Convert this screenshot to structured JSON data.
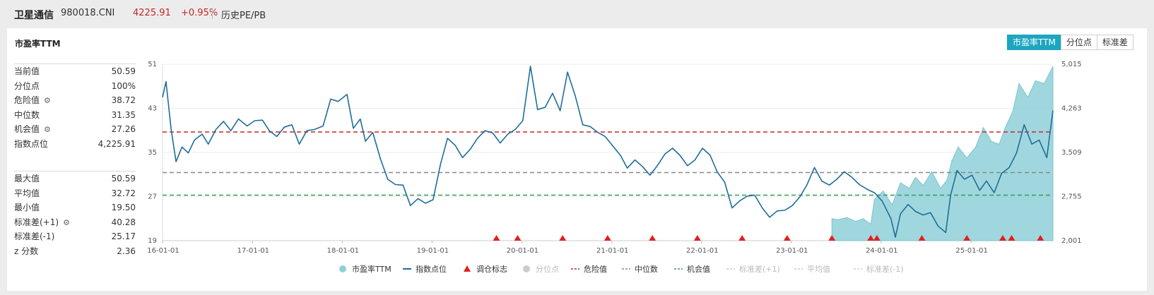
{
  "header": {
    "name": "卫星通信",
    "code": "980018.CNI",
    "price": "4225.91",
    "change": "+0.95%",
    "link": "历史PE/PB"
  },
  "panel": {
    "title": "市盈率TTM",
    "buttons": [
      {
        "label": "市盈率TTM",
        "active": true
      },
      {
        "label": "分位点",
        "active": false
      },
      {
        "label": "标准差",
        "active": false
      }
    ]
  },
  "stats_top": [
    {
      "label": "当前值",
      "value": "50.59",
      "gear": false
    },
    {
      "label": "分位点",
      "value": "100%",
      "gear": false
    },
    {
      "label": "危险值",
      "value": "38.72",
      "gear": true
    },
    {
      "label": "中位数",
      "value": "31.35",
      "gear": false
    },
    {
      "label": "机会值",
      "value": "27.26",
      "gear": true
    },
    {
      "label": "指数点位",
      "value": "4,225.91",
      "gear": false
    }
  ],
  "stats_bottom": [
    {
      "label": "最大值",
      "value": "50.59",
      "gear": false
    },
    {
      "label": "平均值",
      "value": "32.72",
      "gear": false
    },
    {
      "label": "最小值",
      "value": "19.50",
      "gear": false
    },
    {
      "label": "标准差(+1)",
      "value": "40.28",
      "gear": true
    },
    {
      "label": "标准差(-1)",
      "value": "25.17",
      "gear": false
    },
    {
      "label": "z 分数",
      "value": "2.36",
      "gear": false
    }
  ],
  "chart_data": {
    "type": "line",
    "x_ticks": [
      "16-01-01",
      "17-01-01",
      "18-01-01",
      "19-01-01",
      "20-01-01",
      "21-01-01",
      "22-01-01",
      "23-01-01",
      "24-01-01",
      "25-01-01"
    ],
    "x_range": [
      "2016-01-01",
      "2025-11-30"
    ],
    "y_left": {
      "range": [
        19,
        51
      ],
      "ticks": [
        "19",
        "27",
        "35",
        "43",
        "51"
      ]
    },
    "y_right": {
      "range": [
        2001,
        5015
      ],
      "ticks": [
        "2,001",
        "2,755",
        "3,509",
        "4,263",
        "5,015"
      ]
    },
    "reference_lines": [
      {
        "name": "危险值",
        "value": 38.72,
        "color": "#c62828"
      },
      {
        "name": "中位数",
        "value": 31.35,
        "color": "#888888"
      },
      {
        "name": "机会值",
        "value": 27.26,
        "color": "#2e9e5b"
      }
    ],
    "colors": {
      "pe_area": "#8fd0d8",
      "index_line": "#1f6e99",
      "marker": "#e02020"
    },
    "pe_series": {
      "name": "市盈率TTM",
      "points": [
        [
          "2023-06-15",
          23.0
        ],
        [
          "2023-07-10",
          22.8
        ],
        [
          "2023-08-15",
          23.2
        ],
        [
          "2023-09-20",
          22.5
        ],
        [
          "2023-10-20",
          23.0
        ],
        [
          "2023-11-20",
          22.0
        ],
        [
          "2023-12-05",
          26.5
        ],
        [
          "2024-01-10",
          28.0
        ],
        [
          "2024-02-15",
          25.5
        ],
        [
          "2024-03-20",
          29.5
        ],
        [
          "2024-04-25",
          28.5
        ],
        [
          "2024-05-20",
          30.5
        ],
        [
          "2024-06-20",
          29.0
        ],
        [
          "2024-07-25",
          31.5
        ],
        [
          "2024-08-30",
          28.5
        ],
        [
          "2024-09-25",
          30.0
        ],
        [
          "2024-10-15",
          33.5
        ],
        [
          "2024-11-10",
          36.0
        ],
        [
          "2024-12-15",
          34.0
        ],
        [
          "2025-01-20",
          36.0
        ],
        [
          "2025-02-20",
          39.5
        ],
        [
          "2025-03-25",
          37.0
        ],
        [
          "2025-04-25",
          36.5
        ],
        [
          "2025-05-20",
          39.5
        ],
        [
          "2025-06-20",
          42.5
        ],
        [
          "2025-07-15",
          47.5
        ],
        [
          "2025-08-20",
          45.0
        ],
        [
          "2025-09-20",
          48.0
        ],
        [
          "2025-10-25",
          47.5
        ],
        [
          "2025-11-30",
          50.6
        ]
      ]
    },
    "index_series": {
      "name": "指数点位",
      "points": [
        [
          "2016-01-01",
          4450
        ],
        [
          "2016-01-15",
          4720
        ],
        [
          "2016-02-05",
          3900
        ],
        [
          "2016-02-25",
          3350
        ],
        [
          "2016-03-20",
          3600
        ],
        [
          "2016-04-15",
          3500
        ],
        [
          "2016-05-10",
          3720
        ],
        [
          "2016-06-10",
          3820
        ],
        [
          "2016-07-05",
          3650
        ],
        [
          "2016-08-05",
          3900
        ],
        [
          "2016-09-05",
          4040
        ],
        [
          "2016-10-05",
          3880
        ],
        [
          "2016-11-05",
          4080
        ],
        [
          "2016-12-10",
          3960
        ],
        [
          "2017-01-10",
          4050
        ],
        [
          "2017-02-10",
          4060
        ],
        [
          "2017-03-10",
          3880
        ],
        [
          "2017-04-10",
          3780
        ],
        [
          "2017-05-10",
          3940
        ],
        [
          "2017-06-10",
          3980
        ],
        [
          "2017-07-10",
          3650
        ],
        [
          "2017-08-10",
          3880
        ],
        [
          "2017-09-10",
          3900
        ],
        [
          "2017-10-15",
          3960
        ],
        [
          "2017-11-15",
          4420
        ],
        [
          "2017-12-15",
          4380
        ],
        [
          "2018-01-20",
          4500
        ],
        [
          "2018-02-15",
          3920
        ],
        [
          "2018-03-15",
          4080
        ],
        [
          "2018-04-05",
          3700
        ],
        [
          "2018-05-05",
          3850
        ],
        [
          "2018-06-05",
          3400
        ],
        [
          "2018-07-05",
          3050
        ],
        [
          "2018-08-05",
          2960
        ],
        [
          "2018-09-05",
          2950
        ],
        [
          "2018-10-05",
          2600
        ],
        [
          "2018-11-05",
          2720
        ],
        [
          "2018-12-05",
          2640
        ],
        [
          "2019-01-05",
          2700
        ],
        [
          "2019-02-05",
          3320
        ],
        [
          "2019-03-05",
          3750
        ],
        [
          "2019-04-05",
          3630
        ],
        [
          "2019-05-05",
          3420
        ],
        [
          "2019-06-05",
          3560
        ],
        [
          "2019-07-05",
          3750
        ],
        [
          "2019-08-05",
          3880
        ],
        [
          "2019-09-05",
          3840
        ],
        [
          "2019-10-05",
          3670
        ],
        [
          "2019-11-05",
          3820
        ],
        [
          "2019-12-05",
          3900
        ],
        [
          "2020-01-05",
          4050
        ],
        [
          "2020-02-05",
          4980
        ],
        [
          "2020-03-05",
          4240
        ],
        [
          "2020-04-05",
          4280
        ],
        [
          "2020-05-05",
          4520
        ],
        [
          "2020-06-05",
          4220
        ],
        [
          "2020-07-05",
          4880
        ],
        [
          "2020-08-05",
          4480
        ],
        [
          "2020-09-05",
          3980
        ],
        [
          "2020-10-05",
          3950
        ],
        [
          "2020-11-05",
          3850
        ],
        [
          "2020-12-05",
          3780
        ],
        [
          "2021-01-05",
          3620
        ],
        [
          "2021-02-05",
          3460
        ],
        [
          "2021-03-05",
          3240
        ],
        [
          "2021-04-05",
          3380
        ],
        [
          "2021-05-05",
          3270
        ],
        [
          "2021-06-05",
          3120
        ],
        [
          "2021-07-05",
          3280
        ],
        [
          "2021-08-05",
          3480
        ],
        [
          "2021-09-05",
          3580
        ],
        [
          "2021-10-05",
          3460
        ],
        [
          "2021-11-05",
          3280
        ],
        [
          "2021-12-05",
          3380
        ],
        [
          "2022-01-05",
          3580
        ],
        [
          "2022-02-05",
          3460
        ],
        [
          "2022-03-05",
          3180
        ],
        [
          "2022-04-05",
          3000
        ],
        [
          "2022-05-05",
          2560
        ],
        [
          "2022-06-05",
          2680
        ],
        [
          "2022-07-05",
          2760
        ],
        [
          "2022-08-05",
          2780
        ],
        [
          "2022-09-05",
          2560
        ],
        [
          "2022-10-05",
          2400
        ],
        [
          "2022-11-05",
          2510
        ],
        [
          "2022-12-05",
          2520
        ],
        [
          "2023-01-05",
          2600
        ],
        [
          "2023-02-05",
          2750
        ],
        [
          "2023-03-05",
          2950
        ],
        [
          "2023-04-05",
          3250
        ],
        [
          "2023-05-05",
          3020
        ],
        [
          "2023-06-05",
          2950
        ],
        [
          "2023-07-05",
          3050
        ],
        [
          "2023-08-05",
          3180
        ],
        [
          "2023-09-05",
          3080
        ],
        [
          "2023-10-05",
          2960
        ],
        [
          "2023-11-05",
          2880
        ],
        [
          "2023-12-05",
          2820
        ],
        [
          "2024-01-05",
          2680
        ],
        [
          "2024-02-10",
          2380
        ],
        [
          "2024-02-28",
          2060
        ],
        [
          "2024-03-20",
          2460
        ],
        [
          "2024-04-20",
          2620
        ],
        [
          "2024-05-20",
          2500
        ],
        [
          "2024-06-20",
          2440
        ],
        [
          "2024-07-20",
          2480
        ],
        [
          "2024-08-20",
          2250
        ],
        [
          "2024-09-20",
          2140
        ],
        [
          "2024-10-10",
          2780
        ],
        [
          "2024-11-05",
          3200
        ],
        [
          "2024-12-05",
          3050
        ],
        [
          "2025-01-05",
          3120
        ],
        [
          "2025-02-05",
          2860
        ],
        [
          "2025-03-05",
          3020
        ],
        [
          "2025-04-05",
          2820
        ],
        [
          "2025-05-05",
          3150
        ],
        [
          "2025-06-05",
          3250
        ],
        [
          "2025-07-05",
          3500
        ],
        [
          "2025-08-05",
          3980
        ],
        [
          "2025-09-05",
          3650
        ],
        [
          "2025-10-05",
          3720
        ],
        [
          "2025-11-05",
          3420
        ],
        [
          "2025-11-30",
          4226
        ]
      ]
    },
    "markers": {
      "name": "调仓标志",
      "dates": [
        "2019-09-20",
        "2019-12-15",
        "2020-06-15",
        "2020-12-15",
        "2021-06-15",
        "2021-12-15",
        "2022-06-15",
        "2022-12-15",
        "2023-06-15",
        "2023-11-20",
        "2023-12-15",
        "2024-06-15",
        "2024-12-15",
        "2025-05-10",
        "2025-06-15",
        "2025-10-10"
      ]
    },
    "legend": [
      {
        "label": "市盈率TTM",
        "kind": "dot",
        "color": "#8fd0d8",
        "dim": false
      },
      {
        "label": "指数点位",
        "kind": "line",
        "color": "#1f6e99",
        "dim": false
      },
      {
        "label": "调仓标志",
        "kind": "triangle",
        "color": "#e02020",
        "dim": false
      },
      {
        "label": "分位点",
        "kind": "dot",
        "color": "#cccccc",
        "dim": true
      },
      {
        "label": "危险值",
        "kind": "dash",
        "color": "#c62828",
        "dim": false
      },
      {
        "label": "中位数",
        "kind": "dash",
        "color": "#888888",
        "dim": false
      },
      {
        "label": "机会值",
        "kind": "dash",
        "color": "#2e9e5b",
        "dim": false
      },
      {
        "label": "标准差(+1)",
        "kind": "dash",
        "color": "#cccccc",
        "dim": true
      },
      {
        "label": "平均值",
        "kind": "dash",
        "color": "#cccccc",
        "dim": true
      },
      {
        "label": "标准差(-1)",
        "kind": "dash",
        "color": "#cccccc",
        "dim": true
      }
    ]
  }
}
